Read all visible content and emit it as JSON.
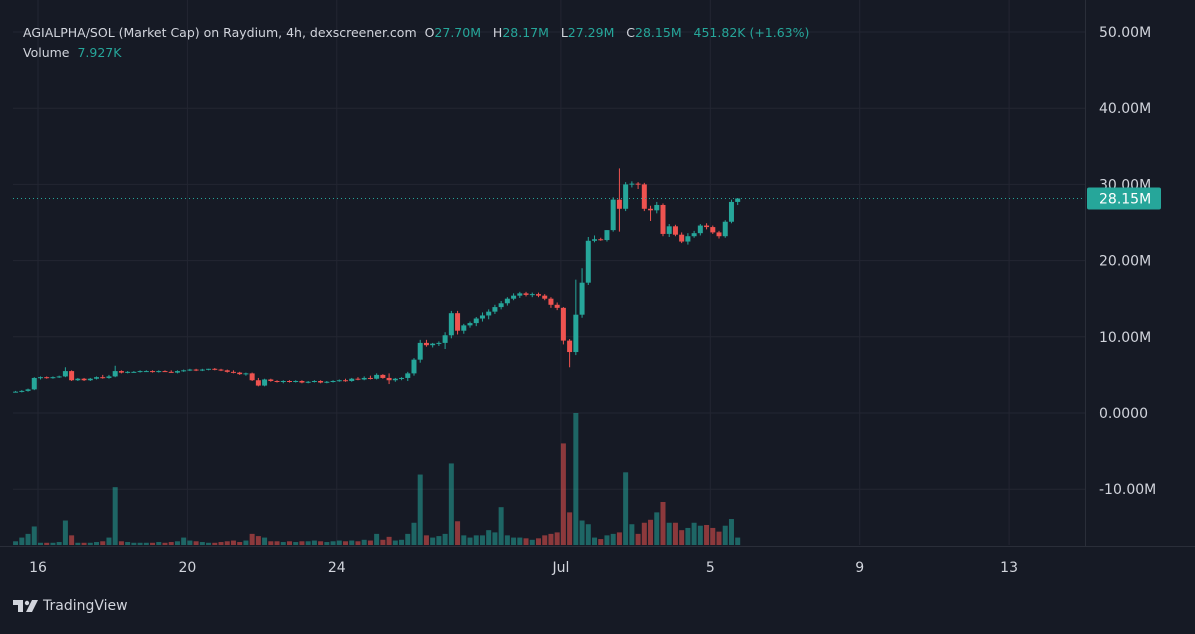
{
  "legend": {
    "symbol": "AGIALPHA/SOL (Market Cap) on Raydium, 4h, dexscreener.com",
    "o_key": "O",
    "o_val": "27.70M",
    "h_key": "H",
    "h_val": "28.17M",
    "l_key": "L",
    "l_val": "27.29M",
    "c_key": "C",
    "c_val": "28.15M",
    "change": "451.82K (+1.63%)",
    "volume_key": "Volume",
    "volume_val": "7.927K"
  },
  "brand": {
    "name": "TradingView",
    "icon": "tradingview-logo-icon"
  },
  "colors": {
    "up": "#26a69a",
    "down": "#ef5350",
    "bg": "#161a25",
    "grid": "#232632",
    "text": "#d1d4dc"
  },
  "chart_data": {
    "type": "candlestick",
    "title": "AGIALPHA/SOL (Market Cap) on Raydium, 4h, dexscreener.com",
    "ylim": [
      -15,
      50
    ],
    "y_ticks": [
      {
        "value": 50,
        "label": "50.00M"
      },
      {
        "value": 40,
        "label": "40.00M"
      },
      {
        "value": 30,
        "label": "30.00M"
      },
      {
        "value": 20,
        "label": "20.00M"
      },
      {
        "value": 10,
        "label": "10.00M"
      },
      {
        "value": 0,
        "label": "0.0000"
      },
      {
        "value": -10,
        "label": "-10.00M"
      }
    ],
    "x_ticks": [
      {
        "day": 16,
        "label": "16"
      },
      {
        "day": 20,
        "label": "20"
      },
      {
        "day": 24,
        "label": "24"
      },
      {
        "day": 30,
        "label": "Jul"
      },
      {
        "day": 34,
        "label": "5"
      },
      {
        "day": 38,
        "label": "9"
      },
      {
        "day": 42,
        "label": "13"
      }
    ],
    "last_price": {
      "value": 28.15,
      "label": "28.15M"
    },
    "grid": true,
    "candle_interval_hours": 4,
    "start_day": 15.4,
    "series": [
      {
        "name": "Market Cap",
        "ohlc": [
          [
            2.8,
            2.9,
            2.7,
            2.8
          ],
          [
            2.8,
            3.0,
            2.7,
            2.9
          ],
          [
            2.9,
            3.2,
            2.8,
            3.1
          ],
          [
            3.1,
            4.7,
            3.0,
            4.6
          ],
          [
            4.6,
            4.8,
            4.4,
            4.7
          ],
          [
            4.7,
            4.8,
            4.5,
            4.6
          ],
          [
            4.6,
            4.8,
            4.5,
            4.7
          ],
          [
            4.7,
            4.9,
            4.6,
            4.8
          ],
          [
            4.8,
            6.0,
            4.7,
            5.5
          ],
          [
            5.5,
            5.6,
            4.2,
            4.3
          ],
          [
            4.3,
            4.6,
            4.2,
            4.5
          ],
          [
            4.5,
            4.6,
            4.2,
            4.3
          ],
          [
            4.3,
            4.6,
            4.2,
            4.5
          ],
          [
            4.5,
            4.8,
            4.4,
            4.7
          ],
          [
            4.7,
            5.0,
            4.5,
            4.6
          ],
          [
            4.6,
            5.0,
            4.5,
            4.8
          ],
          [
            4.8,
            6.2,
            4.7,
            5.5
          ],
          [
            5.5,
            5.6,
            5.2,
            5.3
          ],
          [
            5.3,
            5.5,
            5.2,
            5.4
          ],
          [
            5.4,
            5.5,
            5.3,
            5.4
          ],
          [
            5.4,
            5.6,
            5.3,
            5.5
          ],
          [
            5.5,
            5.6,
            5.4,
            5.5
          ],
          [
            5.5,
            5.6,
            5.3,
            5.4
          ],
          [
            5.4,
            5.6,
            5.3,
            5.5
          ],
          [
            5.5,
            5.6,
            5.4,
            5.4
          ],
          [
            5.4,
            5.6,
            5.3,
            5.3
          ],
          [
            5.3,
            5.6,
            5.2,
            5.5
          ],
          [
            5.5,
            5.7,
            5.4,
            5.6
          ],
          [
            5.6,
            5.8,
            5.5,
            5.7
          ],
          [
            5.7,
            5.8,
            5.5,
            5.6
          ],
          [
            5.6,
            5.8,
            5.5,
            5.7
          ],
          [
            5.7,
            5.8,
            5.6,
            5.8
          ],
          [
            5.8,
            5.9,
            5.6,
            5.7
          ],
          [
            5.7,
            5.8,
            5.5,
            5.6
          ],
          [
            5.6,
            5.7,
            5.3,
            5.4
          ],
          [
            5.4,
            5.6,
            5.2,
            5.3
          ],
          [
            5.3,
            5.4,
            5.0,
            5.1
          ],
          [
            5.1,
            5.3,
            4.9,
            5.2
          ],
          [
            5.2,
            5.3,
            4.2,
            4.3
          ],
          [
            4.3,
            4.6,
            3.5,
            3.6
          ],
          [
            3.6,
            4.5,
            3.5,
            4.4
          ],
          [
            4.4,
            4.5,
            4.1,
            4.2
          ],
          [
            4.2,
            4.3,
            4.0,
            4.1
          ],
          [
            4.1,
            4.3,
            3.9,
            4.2
          ],
          [
            4.2,
            4.3,
            4.0,
            4.1
          ],
          [
            4.1,
            4.3,
            4.0,
            4.2
          ],
          [
            4.2,
            4.3,
            3.9,
            4.0
          ],
          [
            4.0,
            4.2,
            3.9,
            4.1
          ],
          [
            4.1,
            4.3,
            4.0,
            4.2
          ],
          [
            4.2,
            4.3,
            3.9,
            4.0
          ],
          [
            4.0,
            4.2,
            3.9,
            4.1
          ],
          [
            4.1,
            4.3,
            4.0,
            4.2
          ],
          [
            4.2,
            4.4,
            4.1,
            4.3
          ],
          [
            4.3,
            4.5,
            4.1,
            4.2
          ],
          [
            4.2,
            4.6,
            4.1,
            4.5
          ],
          [
            4.5,
            4.7,
            4.3,
            4.4
          ],
          [
            4.4,
            4.8,
            4.3,
            4.6
          ],
          [
            4.6,
            4.9,
            4.4,
            4.5
          ],
          [
            4.5,
            5.2,
            4.4,
            5.0
          ],
          [
            5.0,
            5.1,
            4.5,
            4.6
          ],
          [
            4.6,
            5.2,
            3.8,
            4.3
          ],
          [
            4.3,
            4.6,
            4.1,
            4.5
          ],
          [
            4.5,
            4.7,
            4.3,
            4.6
          ],
          [
            4.6,
            5.4,
            4.2,
            5.2
          ],
          [
            5.2,
            7.2,
            4.9,
            7.0
          ],
          [
            7.0,
            9.6,
            6.6,
            9.2
          ],
          [
            9.2,
            9.6,
            8.7,
            8.9
          ],
          [
            8.9,
            9.2,
            8.6,
            9.1
          ],
          [
            9.1,
            9.4,
            8.8,
            9.2
          ],
          [
            9.2,
            10.6,
            8.4,
            10.2
          ],
          [
            10.2,
            13.4,
            9.8,
            13.1
          ],
          [
            13.1,
            13.4,
            10.3,
            10.8
          ],
          [
            10.8,
            11.7,
            10.4,
            11.5
          ],
          [
            11.5,
            12.0,
            11.2,
            11.8
          ],
          [
            11.8,
            12.6,
            11.4,
            12.4
          ],
          [
            12.4,
            13.2,
            12.0,
            12.8
          ],
          [
            12.8,
            13.6,
            12.3,
            13.3
          ],
          [
            13.3,
            14.2,
            13.0,
            13.9
          ],
          [
            13.9,
            14.7,
            13.6,
            14.4
          ],
          [
            14.4,
            15.2,
            14.1,
            15.0
          ],
          [
            15.0,
            15.7,
            14.8,
            15.4
          ],
          [
            15.4,
            15.9,
            15.1,
            15.7
          ],
          [
            15.7,
            15.9,
            15.3,
            15.5
          ],
          [
            15.5,
            15.8,
            15.2,
            15.6
          ],
          [
            15.6,
            15.8,
            15.2,
            15.4
          ],
          [
            15.4,
            15.6,
            14.8,
            15.0
          ],
          [
            15.0,
            15.2,
            13.8,
            14.2
          ],
          [
            14.2,
            14.5,
            13.5,
            13.8
          ],
          [
            13.8,
            13.9,
            9.0,
            9.5
          ],
          [
            9.5,
            9.7,
            6.0,
            8.0
          ],
          [
            8.0,
            17.5,
            7.6,
            12.9
          ],
          [
            12.9,
            19.0,
            12.5,
            17.1
          ],
          [
            17.1,
            23.1,
            16.8,
            22.6
          ],
          [
            22.6,
            23.3,
            22.4,
            22.8
          ],
          [
            22.8,
            23.0,
            22.6,
            22.7
          ],
          [
            22.7,
            24.0,
            22.5,
            24.0
          ],
          [
            24.0,
            28.3,
            23.8,
            28.0
          ],
          [
            28.0,
            32.1,
            23.8,
            26.8
          ],
          [
            26.8,
            30.3,
            26.5,
            30.0
          ],
          [
            30.0,
            30.4,
            29.6,
            30.1
          ],
          [
            30.1,
            30.3,
            29.4,
            30.0
          ],
          [
            30.0,
            30.2,
            26.5,
            26.8
          ],
          [
            26.8,
            27.2,
            25.2,
            26.6
          ],
          [
            26.6,
            27.7,
            26.2,
            27.3
          ],
          [
            27.3,
            27.5,
            23.2,
            23.5
          ],
          [
            23.5,
            24.8,
            23.1,
            24.5
          ],
          [
            24.5,
            24.7,
            23.2,
            23.4
          ],
          [
            23.4,
            23.7,
            22.3,
            22.5
          ],
          [
            22.5,
            23.6,
            22.1,
            23.2
          ],
          [
            23.2,
            23.9,
            23.0,
            23.6
          ],
          [
            23.6,
            24.8,
            23.3,
            24.6
          ],
          [
            24.6,
            24.9,
            24.1,
            24.4
          ],
          [
            24.4,
            24.6,
            23.5,
            23.7
          ],
          [
            23.7,
            23.9,
            22.9,
            23.2
          ],
          [
            23.2,
            25.3,
            23.0,
            25.1
          ],
          [
            25.1,
            28.0,
            24.9,
            27.7
          ],
          [
            27.7,
            28.17,
            27.29,
            28.15
          ]
        ]
      },
      {
        "name": "Volume",
        "values": [
          0.5,
          1.0,
          1.5,
          2.5,
          0.3,
          0.3,
          0.3,
          0.4,
          3.3,
          1.3,
          0.3,
          0.3,
          0.3,
          0.4,
          0.5,
          1.0,
          7.8,
          0.5,
          0.4,
          0.3,
          0.3,
          0.3,
          0.3,
          0.4,
          0.3,
          0.4,
          0.5,
          1.0,
          0.6,
          0.5,
          0.4,
          0.3,
          0.3,
          0.4,
          0.5,
          0.6,
          0.4,
          0.6,
          1.5,
          1.2,
          1.0,
          0.5,
          0.5,
          0.4,
          0.5,
          0.4,
          0.5,
          0.5,
          0.6,
          0.5,
          0.4,
          0.5,
          0.6,
          0.5,
          0.6,
          0.5,
          0.7,
          0.6,
          1.5,
          0.7,
          1.1,
          0.6,
          0.7,
          1.5,
          3.0,
          9.5,
          1.3,
          1.0,
          1.2,
          1.5,
          11.0,
          3.2,
          1.3,
          1.0,
          1.3,
          1.3,
          2.0,
          1.7,
          5.1,
          1.3,
          1.0,
          1.0,
          0.9,
          0.7,
          0.9,
          1.3,
          1.5,
          1.7,
          13.7,
          4.4,
          17.8,
          3.3,
          2.8,
          1.0,
          0.8,
          1.3,
          1.5,
          1.7,
          9.8,
          2.8,
          1.5,
          3.0,
          3.4,
          4.4,
          5.8,
          3.0,
          3.0,
          2.0,
          2.3,
          3.0,
          2.6,
          2.7,
          2.3,
          1.8,
          2.6,
          3.5,
          1.0
        ]
      }
    ]
  }
}
